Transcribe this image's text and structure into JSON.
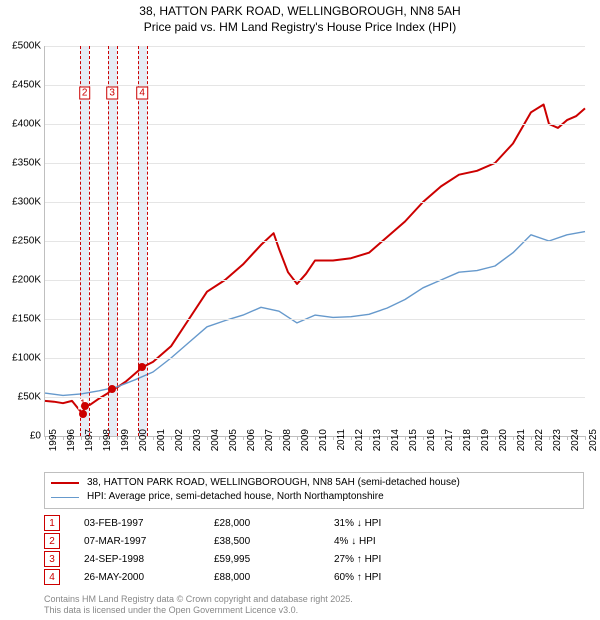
{
  "title": {
    "line1": "38, HATTON PARK ROAD, WELLINGBOROUGH, NN8 5AH",
    "line2": "Price paid vs. HM Land Registry's House Price Index (HPI)",
    "fontsize": 12
  },
  "chart": {
    "type": "line",
    "x_year_min": 1995,
    "x_year_max": 2025,
    "xlabel_fontsize": 10,
    "ymin": 0,
    "ymax": 500000,
    "ytick_step": 50000,
    "ylabel_prefix": "£",
    "ylabel_thousand_suffix": "K",
    "ylabel_fontsize": 10,
    "grid_color": "#e5e5e5",
    "border_color": "#bfbfbf",
    "background_color": "#ffffff",
    "series": [
      {
        "id": "price",
        "color": "#cc0000",
        "line_width": 2,
        "points": [
          [
            1995.0,
            45000
          ],
          [
            1995.5,
            44000
          ],
          [
            1996.0,
            42000
          ],
          [
            1996.5,
            45000
          ],
          [
            1997.1,
            28000
          ],
          [
            1997.2,
            38500
          ],
          [
            1997.5,
            40000
          ],
          [
            1998.0,
            48000
          ],
          [
            1998.5,
            55000
          ],
          [
            1998.7,
            59995
          ],
          [
            1999.0,
            62000
          ],
          [
            1999.5,
            70000
          ],
          [
            2000.0,
            80000
          ],
          [
            2000.4,
            88000
          ],
          [
            2001.0,
            95000
          ],
          [
            2002.0,
            115000
          ],
          [
            2003.0,
            150000
          ],
          [
            2004.0,
            185000
          ],
          [
            2005.0,
            200000
          ],
          [
            2006.0,
            220000
          ],
          [
            2007.0,
            245000
          ],
          [
            2007.7,
            260000
          ],
          [
            2008.0,
            240000
          ],
          [
            2008.5,
            210000
          ],
          [
            2009.0,
            195000
          ],
          [
            2009.5,
            208000
          ],
          [
            2010.0,
            225000
          ],
          [
            2011.0,
            225000
          ],
          [
            2012.0,
            228000
          ],
          [
            2013.0,
            235000
          ],
          [
            2014.0,
            255000
          ],
          [
            2015.0,
            275000
          ],
          [
            2016.0,
            300000
          ],
          [
            2017.0,
            320000
          ],
          [
            2018.0,
            335000
          ],
          [
            2019.0,
            340000
          ],
          [
            2020.0,
            350000
          ],
          [
            2021.0,
            375000
          ],
          [
            2022.0,
            415000
          ],
          [
            2022.7,
            425000
          ],
          [
            2023.0,
            400000
          ],
          [
            2023.5,
            395000
          ],
          [
            2024.0,
            405000
          ],
          [
            2024.5,
            410000
          ],
          [
            2025.0,
            420000
          ]
        ]
      },
      {
        "id": "hpi",
        "color": "#6699cc",
        "line_width": 1.4,
        "points": [
          [
            1995.0,
            55000
          ],
          [
            1996.0,
            52000
          ],
          [
            1997.0,
            54000
          ],
          [
            1998.0,
            58000
          ],
          [
            1999.0,
            63000
          ],
          [
            2000.0,
            72000
          ],
          [
            2001.0,
            82000
          ],
          [
            2002.0,
            100000
          ],
          [
            2003.0,
            120000
          ],
          [
            2004.0,
            140000
          ],
          [
            2005.0,
            148000
          ],
          [
            2006.0,
            155000
          ],
          [
            2007.0,
            165000
          ],
          [
            2008.0,
            160000
          ],
          [
            2009.0,
            145000
          ],
          [
            2010.0,
            155000
          ],
          [
            2011.0,
            152000
          ],
          [
            2012.0,
            153000
          ],
          [
            2013.0,
            156000
          ],
          [
            2014.0,
            164000
          ],
          [
            2015.0,
            175000
          ],
          [
            2016.0,
            190000
          ],
          [
            2017.0,
            200000
          ],
          [
            2018.0,
            210000
          ],
          [
            2019.0,
            212000
          ],
          [
            2020.0,
            218000
          ],
          [
            2021.0,
            235000
          ],
          [
            2022.0,
            258000
          ],
          [
            2023.0,
            250000
          ],
          [
            2024.0,
            258000
          ],
          [
            2025.0,
            262000
          ]
        ]
      }
    ],
    "transaction_markers": {
      "marker_color": "#cc0000",
      "marker_size": 8,
      "items": [
        {
          "n": 1,
          "year": 1997.1,
          "value": 28000,
          "label_dy": -10
        },
        {
          "n": 2,
          "year": 1997.2,
          "value": 38500,
          "band": true
        },
        {
          "n": 3,
          "year": 1998.73,
          "value": 59995,
          "band": true
        },
        {
          "n": 4,
          "year": 2000.4,
          "value": 88000,
          "band": true
        }
      ],
      "band_color": "#e6ecf5",
      "band_halfwidth_years": 0.25,
      "dash_color": "#cc0000"
    },
    "callout_labels_top_y": 440000
  },
  "legend": {
    "border_color": "#bfbfbf",
    "fontsize": 10,
    "items": [
      {
        "color": "#cc0000",
        "width": 2,
        "label": "38, HATTON PARK ROAD, WELLINGBOROUGH, NN8 5AH (semi-detached house)"
      },
      {
        "color": "#6699cc",
        "width": 1.4,
        "label": "HPI: Average price, semi-detached house, North Northamptonshire"
      }
    ]
  },
  "transactions": {
    "box_color": "#cc0000",
    "fontsize": 10,
    "down_glyph": "↓",
    "up_glyph": "↑",
    "vs_label": "HPI",
    "rows": [
      {
        "n": 1,
        "date": "03-FEB-1997",
        "price": "£28,000",
        "pct": "31%",
        "dir": "down"
      },
      {
        "n": 2,
        "date": "07-MAR-1997",
        "price": "£38,500",
        "pct": "4%",
        "dir": "down"
      },
      {
        "n": 3,
        "date": "24-SEP-1998",
        "price": "£59,995",
        "pct": "27%",
        "dir": "up"
      },
      {
        "n": 4,
        "date": "26-MAY-2000",
        "price": "£88,000",
        "pct": "60%",
        "dir": "up"
      }
    ]
  },
  "footer": {
    "color": "#888888",
    "fontsize": 9,
    "line1": "Contains HM Land Registry data © Crown copyright and database right 2025.",
    "line2": "This data is licensed under the Open Government Licence v3.0."
  }
}
